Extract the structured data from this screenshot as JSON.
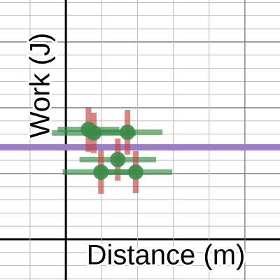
{
  "chart_data": {
    "type": "scatter",
    "x_label": "Distance (m)",
    "y_label": "Work (J)",
    "x": [
      0.63,
      0.78,
      1.72,
      1.45,
      0.98,
      1.95
    ],
    "values": [
      8.35,
      8.09,
      8.14,
      6.06,
      5.11,
      5.11
    ],
    "x_error": [
      0.86,
      1.17,
      0.98,
      1.07,
      1.07,
      1.02
    ],
    "y_error": [
      1.7,
      1.54,
      1.7,
      1.6,
      1.65,
      1.6
    ],
    "color": "#388c46",
    "x_error_color": "#388c46",
    "y_error_color": "#c74440",
    "hline": {
      "value": 7,
      "color": "#9a7fc4"
    },
    "xlim": [
      -1.84,
      5.98
    ],
    "ylim": [
      -3.09,
      18.19
    ],
    "xticks": [
      -1,
      0,
      1,
      2,
      3,
      4,
      5
    ],
    "yticks": [
      -3,
      -2,
      -1,
      0,
      1,
      2,
      3,
      4,
      5,
      6,
      7,
      8,
      9,
      10,
      11,
      12,
      13,
      14,
      15,
      16,
      17,
      18
    ],
    "grid": true
  }
}
